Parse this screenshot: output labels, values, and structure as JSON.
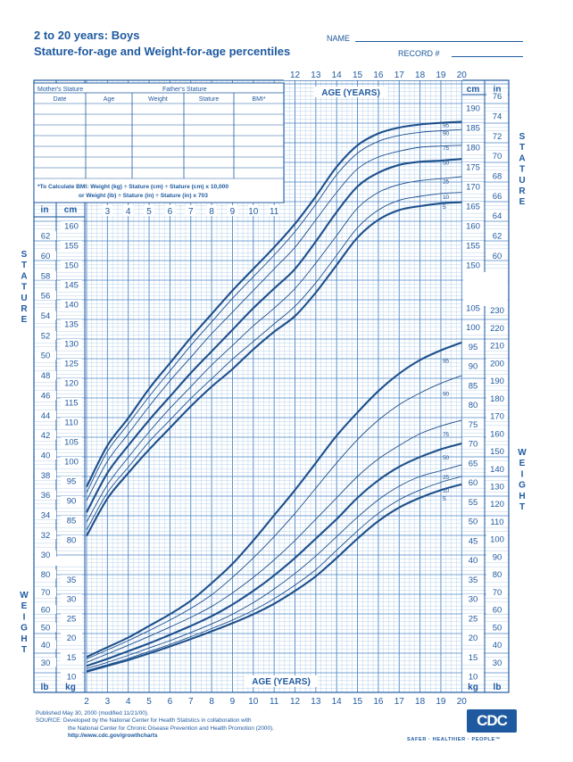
{
  "header": {
    "title_line1": "2 to 20 years: Boys",
    "title_line2": "Stature-for-age and Weight-for-age percentiles",
    "name_label": "NAME",
    "record_label": "RECORD #"
  },
  "record_table": {
    "mother_label": "Mother's Stature",
    "father_label": "Father's Stature",
    "columns": [
      "Date",
      "Age",
      "Weight",
      "Stature",
      "BMI*"
    ],
    "bmi_note_1": "*To Calculate BMI: Weight (kg) ÷ Stature (cm) ÷ Stature (cm) x 10,000",
    "bmi_note_2": "or Weight (lb) ÷ Stature (in) ÷ Stature (in) x 703"
  },
  "axis_text": {
    "age_years": "AGE (YEARS)",
    "in": "in",
    "cm": "cm",
    "lb": "lb",
    "kg": "kg",
    "stature_vertical": "STATURE",
    "weight_vertical": "WEIGHT"
  },
  "footer": {
    "published": "Published May 30, 2000 (modified 11/21/00).",
    "source_1": "SOURCE: Developed by the National Center for Health Statistics in collaboration with",
    "source_2": "the National Center for Chronic Disease Prevention and Health Promotion (2000).",
    "url": "http://www.cdc.gov/growthcharts",
    "logo": "CDC",
    "tagline": "SAFER · HEALTHIER · PEOPLE™"
  },
  "colors": {
    "ink": "#1f5aa0",
    "grid_minor": "#9cc0e4",
    "grid_major": "#4d86c6",
    "curve": "#1d4f8c"
  },
  "chart_data": {
    "type": "line",
    "title": "Stature-for-age and Weight-for-age percentiles",
    "x_label": "AGE (YEARS)",
    "x_ticks": [
      2,
      3,
      4,
      5,
      6,
      7,
      8,
      9,
      10,
      11,
      12,
      13,
      14,
      15,
      16,
      17,
      18,
      19,
      20
    ],
    "xlim": [
      2,
      20
    ],
    "ages": [
      2,
      3,
      4,
      5,
      6,
      7,
      8,
      9,
      10,
      11,
      12,
      13,
      14,
      15,
      16,
      17,
      18,
      19,
      20
    ],
    "stature": {
      "unit": "cm",
      "ylim_cm": [
        77,
        192
      ],
      "left_cm_ticks": [
        80,
        85,
        90,
        95,
        100,
        105,
        110,
        115,
        120,
        125,
        130,
        135,
        140,
        145,
        150,
        155,
        160
      ],
      "right_cm_ticks": [
        105,
        150,
        155,
        160,
        165,
        170,
        175,
        180,
        185,
        190
      ],
      "left_in_ticks": [
        30,
        32,
        34,
        36,
        38,
        40,
        42,
        44,
        46,
        48,
        50,
        52,
        54,
        56,
        58,
        60,
        62
      ],
      "right_in_ticks": [
        60,
        62,
        64,
        66,
        68,
        70,
        72,
        74,
        76
      ],
      "series": [
        {
          "name": "95",
          "bold": true,
          "values": [
            93.5,
            104,
            111,
            118.5,
            125,
            131.5,
            137.5,
            143.5,
            149,
            154.5,
            160.5,
            167.5,
            175,
            180.5,
            183.5,
            185,
            185.8,
            186.2,
            186.5
          ]
        },
        {
          "name": "90",
          "bold": false,
          "values": [
            92,
            102.5,
            109.5,
            116.5,
            123,
            129.5,
            135.5,
            141.5,
            147,
            152.5,
            158.5,
            165.5,
            173,
            178.5,
            181.5,
            183,
            183.8,
            184.2,
            184.5
          ]
        },
        {
          "name": "75",
          "bold": false,
          "values": [
            90,
            100,
            107,
            114,
            120.5,
            126.5,
            132.5,
            138,
            143.5,
            149,
            154.5,
            161.5,
            168.5,
            174.5,
            177.5,
            179,
            180,
            180.3,
            180.5
          ]
        },
        {
          "name": "50",
          "bold": true,
          "values": [
            87,
            97,
            104,
            110.5,
            116.5,
            122.5,
            128,
            133.5,
            139,
            144,
            149,
            156,
            163.5,
            170,
            173.5,
            175.5,
            176.3,
            176.6,
            177
          ]
        },
        {
          "name": "25",
          "bold": false,
          "values": [
            84.5,
            94,
            101,
            107.5,
            113.5,
            119,
            124.5,
            129.5,
            134.5,
            139,
            144,
            150.5,
            157.5,
            164.5,
            168.5,
            170.5,
            171.5,
            172,
            172.5
          ]
        },
        {
          "name": "10",
          "bold": false,
          "values": [
            82.5,
            92,
            98.5,
            105,
            110.5,
            116,
            121,
            126,
            130.5,
            135,
            139.5,
            145.5,
            152.5,
            159.5,
            164,
            166.5,
            167.5,
            168.2,
            168.5
          ]
        },
        {
          "name": "5",
          "bold": true,
          "values": [
            81,
            90.5,
            97,
            103,
            108.5,
            114,
            119,
            123.5,
            128.5,
            133,
            137,
            143,
            150,
            157,
            161.5,
            164,
            165,
            165.7,
            166
          ]
        }
      ]
    },
    "weight": {
      "unit": "kg",
      "ylim_kg": [
        7,
        115
      ],
      "left_kg_ticks": [
        10,
        15,
        20,
        25,
        30,
        35
      ],
      "right_kg_ticks": [
        10,
        15,
        20,
        25,
        30,
        35,
        40,
        45,
        50,
        55,
        60,
        65,
        70,
        75,
        80,
        85,
        90,
        95,
        100,
        105
      ],
      "left_lb_ticks": [
        30,
        40,
        50,
        60,
        70,
        80
      ],
      "right_lb_ticks": [
        30,
        40,
        50,
        60,
        70,
        80,
        90,
        100,
        110,
        120,
        130,
        140,
        150,
        160,
        170,
        180,
        190,
        200,
        210,
        220,
        230
      ],
      "series": [
        {
          "name": "95",
          "bold": true,
          "values": [
            15,
            17.5,
            20,
            23,
            26,
            29.5,
            34,
            39,
            45,
            51.5,
            58,
            65,
            72,
            78,
            83.5,
            88,
            91.5,
            94,
            96
          ]
        },
        {
          "name": "90",
          "bold": false,
          "values": [
            14.5,
            16.8,
            19.2,
            21.8,
            24.5,
            27.5,
            31,
            35.5,
            40.5,
            46,
            52,
            58.5,
            65,
            71,
            76,
            80,
            83,
            85.5,
            87.5
          ]
        },
        {
          "name": "75",
          "bold": false,
          "values": [
            13.6,
            15.8,
            18,
            20.3,
            22.7,
            25.2,
            28,
            31.5,
            35.5,
            40,
            45,
            50.5,
            56,
            61.5,
            66,
            69.5,
            72.5,
            74.5,
            76
          ]
        },
        {
          "name": "50",
          "bold": true,
          "values": [
            12.7,
            14.5,
            16.5,
            18.5,
            20.7,
            23,
            25.5,
            28.5,
            32,
            36,
            40.5,
            45.5,
            50.5,
            56,
            60.5,
            64,
            66.5,
            68.5,
            70
          ]
        },
        {
          "name": "25",
          "bold": false,
          "values": [
            12,
            13.6,
            15.4,
            17.3,
            19.2,
            21.3,
            23.5,
            26,
            29,
            32.5,
            36.5,
            41,
            46,
            51,
            55.5,
            59,
            61.5,
            63,
            64.5
          ]
        },
        {
          "name": "10",
          "bold": false,
          "values": [
            11.5,
            13,
            14.6,
            16.4,
            18.2,
            20.2,
            22.3,
            24.5,
            27,
            30,
            33.5,
            37.5,
            42.5,
            47.5,
            52,
            55.5,
            58,
            60,
            61.5
          ]
        },
        {
          "name": "5",
          "bold": true,
          "values": [
            11.2,
            12.7,
            14.2,
            15.9,
            17.7,
            19.6,
            21.6,
            23.7,
            26,
            28.7,
            32,
            35.8,
            40.5,
            45.5,
            50,
            53.5,
            56,
            58,
            59.5
          ]
        }
      ]
    }
  }
}
